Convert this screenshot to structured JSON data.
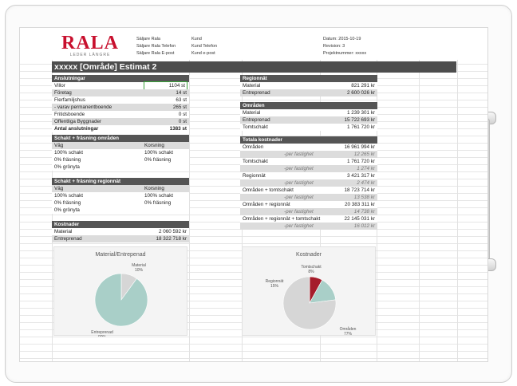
{
  "logo": {
    "name": "RALA",
    "tagline": "LEDER LÄNGRE"
  },
  "meta": {
    "col1": [
      "Säljare Rala",
      "Säljare Rala Telefon",
      "Säljare Rala E-post"
    ],
    "col2": [
      "Kund",
      "Kund Telefon",
      "Kund e-post"
    ],
    "col3": [
      "Datum: 2015-10-19",
      "Revision: 3",
      "Projektnummer: xxxxx"
    ]
  },
  "title": "xxxxx [Område] Estimat 2",
  "anslutningar": {
    "head": "Anslutningar",
    "rows": [
      {
        "label": "Villor",
        "value": "1104 st"
      },
      {
        "label": "Företag",
        "value": "14 st"
      },
      {
        "label": "Flerfamiljshus",
        "value": "63 st"
      },
      {
        "label": "- varav permanentboende",
        "value": "265 st"
      },
      {
        "label": "Fritidsboende",
        "value": "0 st"
      },
      {
        "label": "Offentliga Byggnader",
        "value": "0 st"
      },
      {
        "label": "Antal anslutningar",
        "value": "1383 st"
      }
    ]
  },
  "schakt_omraden": {
    "head": "Schakt + fräsning områden",
    "rows": [
      {
        "a": "Väg",
        "b": "Korsning"
      },
      {
        "a": "100% schakt",
        "b": "100% schakt"
      },
      {
        "a": "0% fräsning",
        "b": "0% fräsning"
      },
      {
        "a": "0% grönyta",
        "b": ""
      }
    ]
  },
  "schakt_regionnat": {
    "head": "Schakt + fräsning regionnät",
    "rows": [
      {
        "a": "Väg",
        "b": "Korsning"
      },
      {
        "a": "100% schakt",
        "b": "100% schakt"
      },
      {
        "a": "0% fräsning",
        "b": "0% fräsning"
      },
      {
        "a": "0% grönyta",
        "b": ""
      }
    ]
  },
  "kostnader": {
    "head": "Kostnader",
    "rows": [
      {
        "label": "Material",
        "value": "2 060 592 kr"
      },
      {
        "label": "Entreprenad",
        "value": "18 322 718 kr"
      }
    ]
  },
  "regionnat": {
    "head": "Regionnät",
    "rows": [
      {
        "label": "Material",
        "value": "821 291 kr"
      },
      {
        "label": "Entreprenad",
        "value": "2 600 026 kr"
      }
    ]
  },
  "omraden": {
    "head": "Områden",
    "rows": [
      {
        "label": "Material",
        "value": "1 239 301 kr"
      },
      {
        "label": "Entreprenad",
        "value": "15 722 693 kr"
      },
      {
        "label": "Tomtschakt",
        "value": "1 761 720 kr"
      }
    ]
  },
  "totala": {
    "head": "Totala kostnader",
    "rows": [
      {
        "label": "Områden",
        "value": "16 961 994 kr",
        "sub": false
      },
      {
        "label": "-per fastighet",
        "value": "12 265 kr",
        "sub": true
      },
      {
        "label": "Tomtschakt",
        "value": "1 761 720 kr",
        "sub": false
      },
      {
        "label": "-per fastighet",
        "value": "1 274 kr",
        "sub": true
      },
      {
        "label": "Regionnät",
        "value": "3 421 317 kr",
        "sub": false
      },
      {
        "label": "-per fastighet",
        "value": "2 474 kr",
        "sub": true
      },
      {
        "label": "Områden + tomtschakt",
        "value": "18 723 714 kr",
        "sub": false
      },
      {
        "label": "-per fastighet",
        "value": "13 538 kr",
        "sub": true
      },
      {
        "label": "Områden + regionnät",
        "value": "20 383 311 kr",
        "sub": false
      },
      {
        "label": "-per fastighet",
        "value": "14 738 kr",
        "sub": true
      },
      {
        "label": "Områden + regionnät + tomtschakt",
        "value": "22 145 031 kr",
        "sub": false
      },
      {
        "label": "-per fastighet",
        "value": "16 012 kr",
        "sub": true
      }
    ]
  },
  "chart_data": [
    {
      "type": "pie",
      "title": "Material/Entrepenad",
      "categories": [
        "Material",
        "Entreprenad"
      ],
      "values": [
        10,
        90
      ],
      "value_labels": [
        "10%",
        "90%"
      ],
      "colors": [
        "#d6d6d6",
        "#a9cfc8"
      ]
    },
    {
      "type": "pie",
      "title": "Kostnader",
      "categories": [
        "Tomtschakt",
        "Regionnät",
        "Områden"
      ],
      "values": [
        8,
        15,
        77
      ],
      "value_labels": [
        "8%",
        "15%",
        "77%"
      ],
      "colors": [
        "#a51d2b",
        "#a9cfc8",
        "#d6d6d6"
      ]
    }
  ]
}
